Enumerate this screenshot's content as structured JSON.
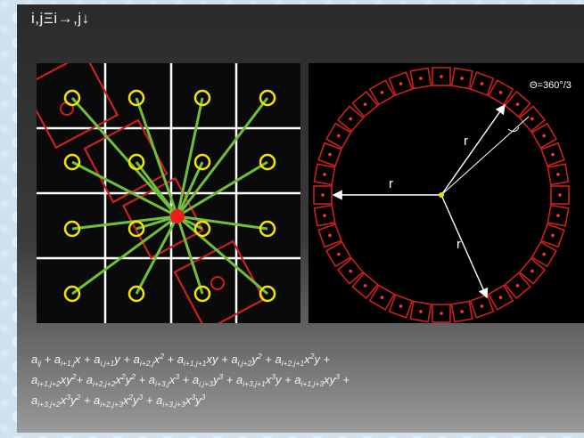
{
  "slide": {
    "title": "i,jΞi→,j↓"
  },
  "grid_diagram": {
    "grid_lines": 3,
    "cells": 4,
    "sample_points": 16,
    "colors": {
      "grid": "#ffffff",
      "sample_circle": "#f2e600",
      "spoke": "#6fbf3a",
      "center": "#ee1c1c",
      "patch": "#cc1f1f"
    }
  },
  "circle_diagram": {
    "labels": {
      "angle": "Θ=360°/3",
      "radius_left": "r",
      "radius_top": "r",
      "radius_bottom": "r"
    },
    "patch_count": 36,
    "colors": {
      "ring": "#cc1f1f",
      "dot": "#ff3333",
      "arrow": "#ffffff",
      "center": "#e8e000"
    }
  },
  "formula": {
    "lines": [
      [
        [
          "a",
          "ij",
          ""
        ],
        [
          " + a",
          "i+1,j",
          ""
        ],
        [
          "x + a",
          "i,j+1",
          ""
        ],
        [
          "y + a",
          "i+2,j",
          ""
        ],
        [
          "x",
          "",
          "2"
        ],
        [
          " + a",
          "i+1,j+1",
          ""
        ],
        [
          "xy + a",
          "i,j+2",
          ""
        ],
        [
          "y",
          "",
          "2"
        ],
        [
          " + a",
          "i+2,j+1",
          ""
        ],
        [
          "x",
          "",
          "2"
        ],
        [
          "y +",
          "",
          ""
        ]
      ],
      [
        [
          "a",
          "i+1,j+2",
          ""
        ],
        [
          "xy",
          "",
          "2"
        ],
        [
          "+ a",
          "i+2,j+2",
          ""
        ],
        [
          "x",
          "",
          "2"
        ],
        [
          "y",
          "",
          "2"
        ],
        [
          " + a",
          "i+3,j",
          ""
        ],
        [
          "x",
          "",
          "3"
        ],
        [
          " + a",
          "i,j+3",
          ""
        ],
        [
          "y",
          "",
          "3"
        ],
        [
          " + a",
          "i+3,j+1",
          ""
        ],
        [
          "x",
          "",
          "3"
        ],
        [
          "y + a",
          "i+1,j+3",
          ""
        ],
        [
          "xy",
          "",
          "3"
        ],
        [
          " +",
          "",
          ""
        ]
      ],
      [
        [
          "a",
          "i+3,j+2",
          ""
        ],
        [
          "x",
          "",
          "3"
        ],
        [
          "y",
          "",
          "2"
        ],
        [
          " + a",
          "i+2,j+3",
          ""
        ],
        [
          "x",
          "",
          "2"
        ],
        [
          "y",
          "",
          "3"
        ],
        [
          " + a",
          "i+3,j+3",
          ""
        ],
        [
          "x",
          "",
          "3"
        ],
        [
          "y",
          "",
          "3"
        ]
      ]
    ]
  }
}
